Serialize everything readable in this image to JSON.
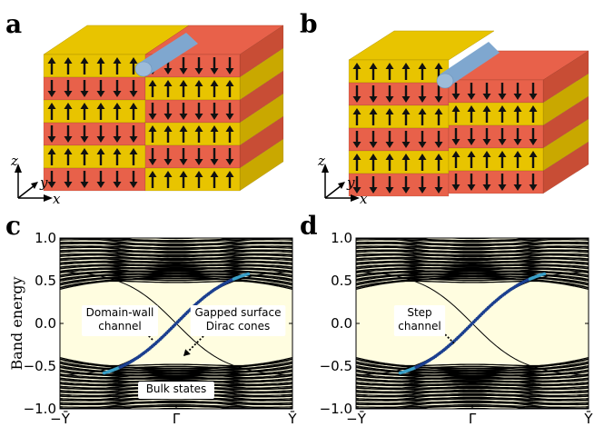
{
  "panels": {
    "a": {
      "label": "a"
    },
    "b": {
      "label": "b"
    },
    "c": {
      "label": "c"
    },
    "d": {
      "label": "d"
    }
  },
  "axes_3d": {
    "z": "z",
    "y": "y",
    "x": "x"
  },
  "colors": {
    "yellow_layer": "#e8c400",
    "red_layer": "#e8614a",
    "arrow": "#111111",
    "rod": "#7fa7cf",
    "bands": "#000000",
    "band_background": "#fffde0",
    "channel": "#1b3f8f",
    "channel_highlight": "#3aa0c8"
  },
  "chart_data": [
    {
      "type": "line",
      "panel": "c",
      "ylabel": "Band energy",
      "ylim": [
        -1.0,
        1.0
      ],
      "yticks": [
        "1.0",
        "0.5",
        "0.0",
        "−0.5",
        "−1.0"
      ],
      "xticks": [
        "−Ȳ",
        "Γ̄",
        "Ȳ"
      ],
      "annotations": [
        {
          "text": [
            "Domain-wall",
            "channel"
          ]
        },
        {
          "text": [
            "Gapped surface",
            "Dirac cones"
          ]
        },
        {
          "text": [
            "Bulk states"
          ]
        }
      ]
    },
    {
      "type": "line",
      "panel": "d",
      "ylim": [
        -1.0,
        1.0
      ],
      "yticks": [
        "1.0",
        "0.5",
        "0.0",
        "−0.5",
        "−1.0"
      ],
      "xticks": [
        "−Ȳ",
        "Γ̄",
        "Ȳ"
      ],
      "annotations": [
        {
          "text": [
            "Step",
            "channel"
          ]
        }
      ]
    }
  ]
}
